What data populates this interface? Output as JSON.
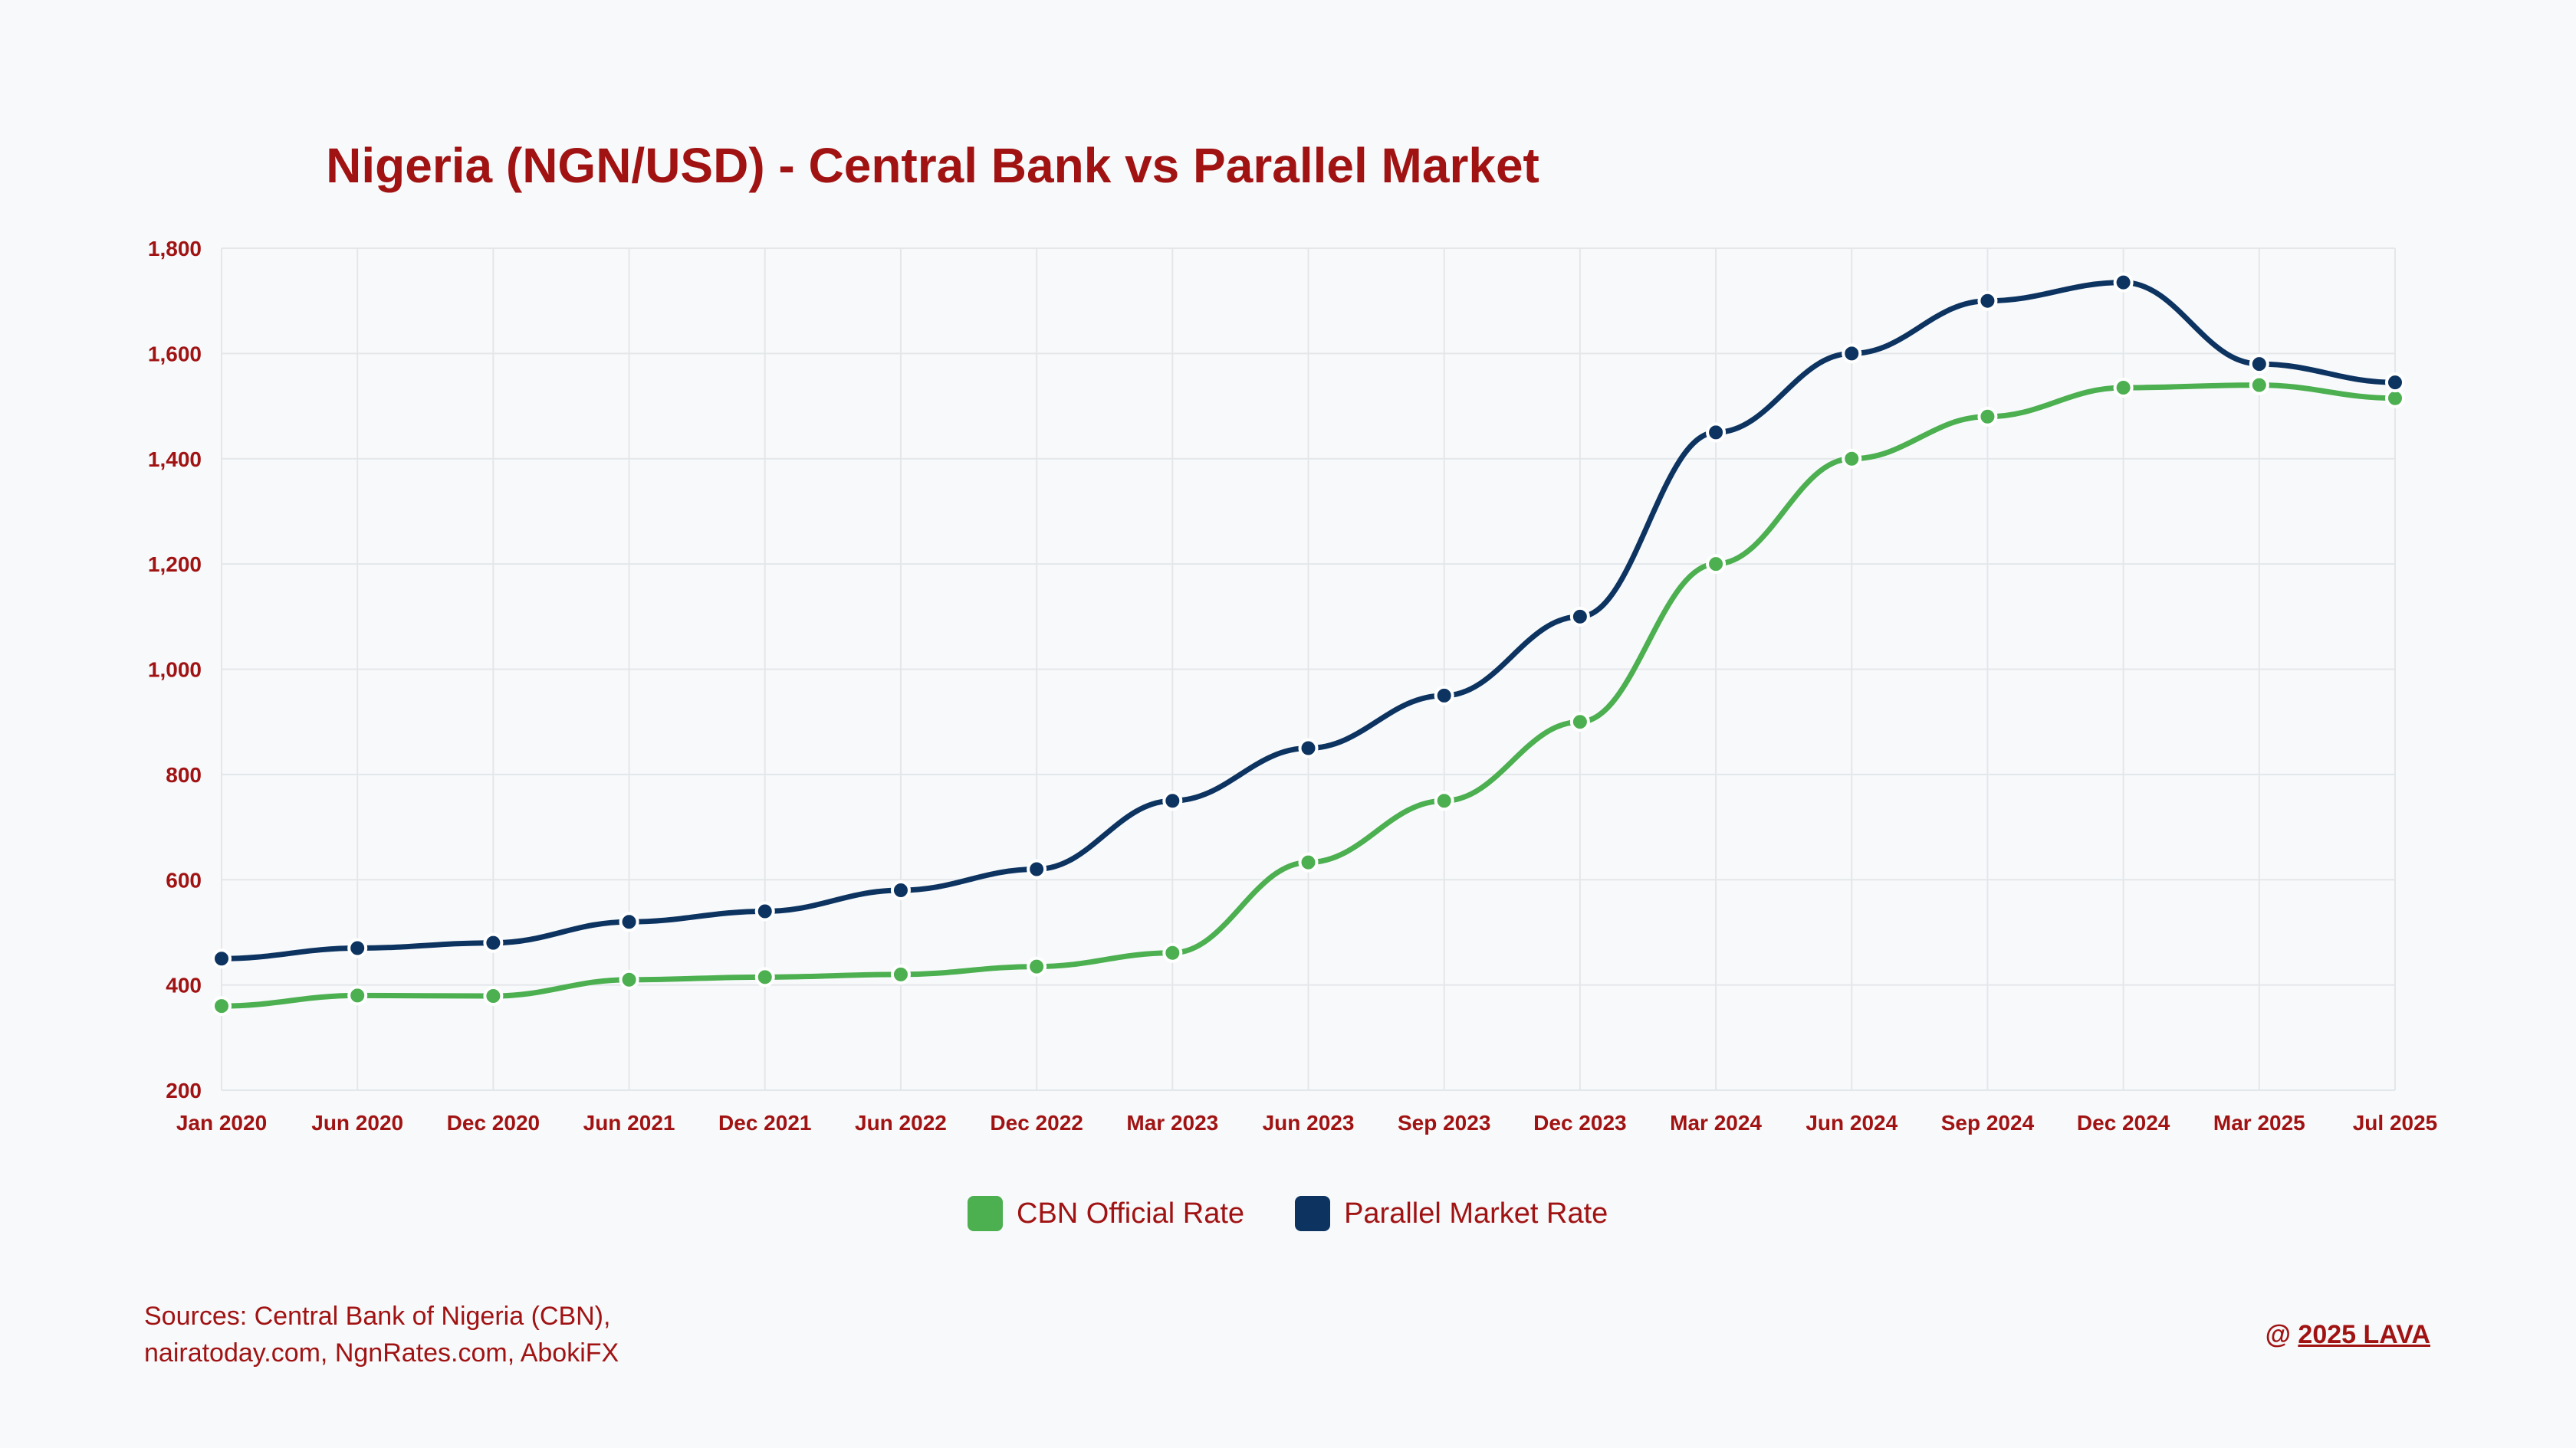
{
  "chart_data": {
    "type": "line",
    "title": "Nigeria (NGN/USD) - Central Bank vs Parallel Market",
    "xlabel": "",
    "ylabel": "",
    "categories": [
      "Jan 2020",
      "Jun 2020",
      "Dec 2020",
      "Jun 2021",
      "Dec 2021",
      "Jun 2022",
      "Dec 2022",
      "Mar 2023",
      "Jun 2023",
      "Sep 2023",
      "Dec 2023",
      "Mar 2024",
      "Jun 2024",
      "Sep 2024",
      "Dec 2024",
      "Mar 2025",
      "Jul 2025"
    ],
    "ylim": [
      200,
      1800
    ],
    "yticks": [
      "200",
      "400",
      "600",
      "800",
      "1,000",
      "1,200",
      "1,400",
      "1,600",
      "1,800"
    ],
    "grid": true,
    "legend_position": "bottom-center",
    "series": [
      {
        "name": "CBN Official Rate",
        "color": "#4caf50",
        "values": [
          360,
          380,
          379,
          410,
          415,
          420,
          435,
          461,
          633,
          750,
          900,
          1200,
          1400,
          1480,
          1535,
          1540,
          1515
        ]
      },
      {
        "name": "Parallel Market Rate",
        "color": "#0d3461",
        "values": [
          450,
          470,
          480,
          520,
          540,
          580,
          620,
          750,
          850,
          950,
          1100,
          1450,
          1600,
          1700,
          1735,
          1580,
          1545
        ]
      }
    ]
  },
  "colors": {
    "text": "#a11313",
    "grid": "#e4e7ea",
    "background": "#f7f9fb"
  },
  "footer": {
    "sources_line1": "Sources: Central Bank of Nigeria (CBN),",
    "sources_line2": "nairatoday.com, NgnRates.com, AbokiFX",
    "credit_prefix": "@ ",
    "credit_link": "2025 LAVA"
  }
}
